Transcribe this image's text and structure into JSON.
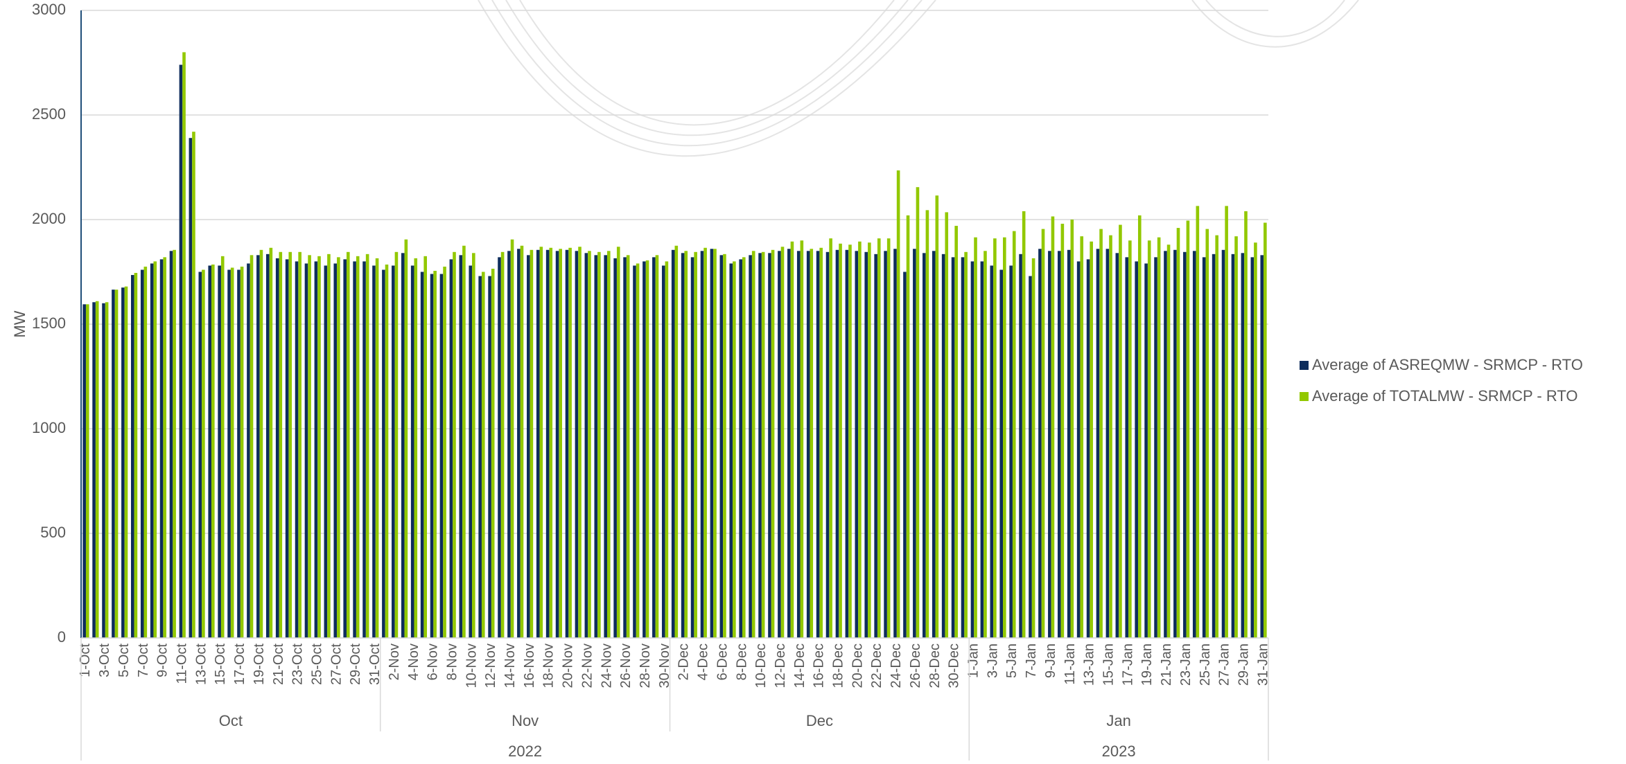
{
  "chart_data": {
    "type": "bar",
    "y_label": "MW",
    "categories": [
      "1-Oct",
      null,
      "3-Oct",
      null,
      "5-Oct",
      null,
      "7-Oct",
      null,
      "9-Oct",
      null,
      "11-Oct",
      null,
      "13-Oct",
      null,
      "15-Oct",
      null,
      "17-Oct",
      null,
      "19-Oct",
      null,
      "21-Oct",
      null,
      "23-Oct",
      null,
      "25-Oct",
      null,
      "27-Oct",
      null,
      "29-Oct",
      null,
      "31-Oct",
      null,
      "2-Nov",
      null,
      "4-Nov",
      null,
      "6-Nov",
      null,
      "8-Nov",
      null,
      "10-Nov",
      null,
      "12-Nov",
      null,
      "14-Nov",
      null,
      "16-Nov",
      null,
      "18-Nov",
      null,
      "20-Nov",
      null,
      "22-Nov",
      null,
      "24-Nov",
      null,
      "26-Nov",
      null,
      "28-Nov",
      null,
      "30-Nov",
      null,
      "2-Dec",
      null,
      "4-Dec",
      null,
      "6-Dec",
      null,
      "8-Dec",
      null,
      "10-Dec",
      null,
      "12-Dec",
      null,
      "14-Dec",
      null,
      "16-Dec",
      null,
      "18-Dec",
      null,
      "20-Dec",
      null,
      "22-Dec",
      null,
      "24-Dec",
      null,
      "26-Dec",
      null,
      "28-Dec",
      null,
      "30-Dec",
      null,
      "1-Jan",
      null,
      "3-Jan",
      null,
      "5-Jan",
      null,
      "7-Jan",
      null,
      "9-Jan",
      null,
      "11-Jan",
      null,
      "13-Jan",
      null,
      "15-Jan",
      null,
      "17-Jan",
      null,
      "19-Jan",
      null,
      "21-Jan",
      null,
      "23-Jan",
      null,
      "25-Jan",
      null,
      "27-Jan",
      null,
      "29-Jan",
      null,
      "31-Jan"
    ],
    "months": [
      "Oct",
      "Nov",
      "Dec",
      "Jan"
    ],
    "years": [
      "2022",
      "2023"
    ],
    "series": [
      {
        "name": "Average of ASREQMW - SRMCP - RTO",
        "color": "#0e2d5c",
        "values": [
          1595,
          1605,
          1600,
          1665,
          1675,
          1735,
          1760,
          1790,
          1810,
          1850,
          2740,
          2390,
          1750,
          1780,
          1780,
          1760,
          1760,
          1790,
          1830,
          1835,
          1815,
          1810,
          1800,
          1790,
          1800,
          1780,
          1790,
          1810,
          1800,
          1800,
          1780,
          1760,
          1780,
          1840,
          1780,
          1750,
          1740,
          1740,
          1810,
          1830,
          1780,
          1730,
          1730,
          1820,
          1850,
          1860,
          1830,
          1855,
          1855,
          1850,
          1855,
          1850,
          1840,
          1830,
          1830,
          1815,
          1820,
          1780,
          1800,
          1820,
          1780,
          1855,
          1840,
          1820,
          1850,
          1860,
          1830,
          1790,
          1810,
          1830,
          1840,
          1840,
          1850,
          1860,
          1850,
          1850,
          1850,
          1845,
          1855,
          1855,
          1850,
          1845,
          1835,
          1850,
          1860,
          1750,
          1860,
          1840,
          1850,
          1835,
          1820,
          1820,
          1800,
          1800,
          1780,
          1760,
          1780,
          1835,
          1730,
          1860,
          1850,
          1850,
          1855,
          1800,
          1810,
          1860,
          1860,
          1840,
          1820,
          1800,
          1790,
          1820,
          1850,
          1855,
          1845,
          1850,
          1820,
          1835,
          1855,
          1835,
          1840,
          1820,
          1830
        ]
      },
      {
        "name": "Average of TOTALMW - SRMCP - RTO",
        "color": "#92c800",
        "values": [
          1595,
          1610,
          1605,
          1665,
          1680,
          1745,
          1775,
          1800,
          1820,
          1855,
          2800,
          2420,
          1760,
          1785,
          1825,
          1770,
          1775,
          1830,
          1855,
          1865,
          1845,
          1845,
          1845,
          1830,
          1825,
          1835,
          1820,
          1845,
          1825,
          1835,
          1815,
          1785,
          1845,
          1905,
          1815,
          1825,
          1755,
          1775,
          1845,
          1875,
          1840,
          1750,
          1765,
          1845,
          1905,
          1875,
          1855,
          1870,
          1865,
          1860,
          1865,
          1870,
          1850,
          1845,
          1850,
          1870,
          1830,
          1790,
          1805,
          1830,
          1800,
          1875,
          1850,
          1845,
          1865,
          1860,
          1835,
          1800,
          1820,
          1850,
          1845,
          1855,
          1870,
          1895,
          1900,
          1860,
          1865,
          1910,
          1885,
          1880,
          1895,
          1890,
          1910,
          1910,
          2235,
          2020,
          2155,
          2045,
          2115,
          2035,
          1970,
          1845,
          1915,
          1850,
          1910,
          1915,
          1945,
          2040,
          1815,
          1955,
          2015,
          1980,
          2000,
          1920,
          1895,
          1955,
          1925,
          1975,
          1900,
          2020,
          1900,
          1915,
          1880,
          1960,
          1995,
          2065,
          1955,
          1925,
          2065,
          1920,
          2040,
          1890,
          1985
        ]
      }
    ],
    "ylim": [
      0,
      3000
    ],
    "yticks": [
      0,
      500,
      1000,
      1500,
      2000,
      2500,
      3000
    ],
    "grid": true,
    "legend": "right"
  }
}
